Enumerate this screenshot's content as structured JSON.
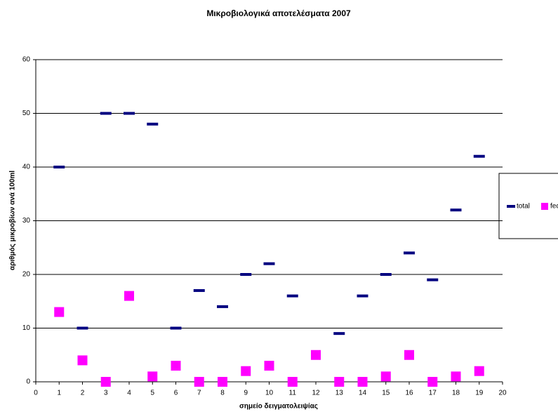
{
  "chart_data": {
    "type": "scatter",
    "title": "Μικροβιολογικά αποτελέσματα 2007",
    "x_label": "σημείο δειγματολειψίας",
    "y_label": "αριθμός μικροβίων ανά 100ml",
    "x": [
      1,
      2,
      3,
      4,
      5,
      6,
      7,
      8,
      9,
      10,
      11,
      12,
      13,
      14,
      15,
      16,
      17,
      18,
      19
    ],
    "series": [
      {
        "name": "total",
        "color": "#000080",
        "marker": "dash",
        "values": [
          40,
          10,
          50,
          50,
          48,
          10,
          17,
          14,
          20,
          22,
          16,
          null,
          9,
          16,
          20,
          24,
          19,
          32,
          42
        ]
      },
      {
        "name": "feca",
        "color": "#ff00ff",
        "marker": "square",
        "values": [
          13,
          4,
          0,
          16,
          1,
          3,
          0,
          0,
          2,
          3,
          0,
          5,
          0,
          0,
          1,
          5,
          0,
          1,
          2
        ]
      }
    ],
    "xlim": [
      0,
      20
    ],
    "xticks": [
      0,
      1,
      2,
      3,
      4,
      5,
      6,
      7,
      8,
      9,
      10,
      11,
      12,
      13,
      14,
      15,
      16,
      17,
      18,
      19,
      20
    ],
    "ylim": [
      0,
      60
    ],
    "yticks": [
      0,
      10,
      20,
      30,
      40,
      50,
      60
    ],
    "grid": true,
    "legend": "right"
  }
}
